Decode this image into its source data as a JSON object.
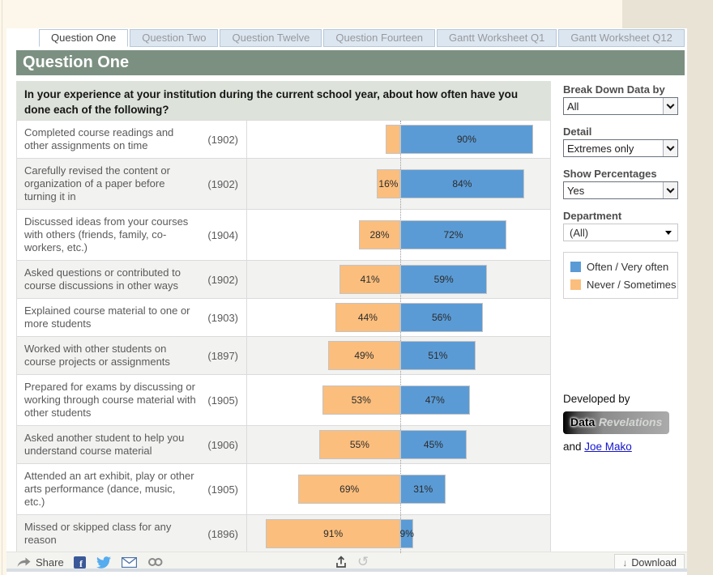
{
  "tabs": [
    {
      "label": "Question One",
      "active": true
    },
    {
      "label": "Question Two",
      "active": false
    },
    {
      "label": "Question Twelve",
      "active": false
    },
    {
      "label": "Question Fourteen",
      "active": false
    },
    {
      "label": "Gantt Worksheet Q1",
      "active": false
    },
    {
      "label": "Gantt Worksheet Q12",
      "active": false
    }
  ],
  "header": {
    "title": "Question One"
  },
  "question": "In your experience at your institution during the current school year, about how often have you done each of the following?",
  "chart_data": {
    "type": "bar",
    "orientation": "horizontal-diverging",
    "series": [
      {
        "name": "Never / Sometimes",
        "color": "#FBBE7D"
      },
      {
        "name": "Often / Very often",
        "color": "#5B9BD5"
      }
    ],
    "rows": [
      {
        "label": "Completed course readings and other assignments on time",
        "n": "(1902)",
        "never_pct": 10,
        "often_pct": 90,
        "never_label": "",
        "often_label": "90%"
      },
      {
        "label": "Carefully revised the content or organization of a paper before turning it in",
        "n": "(1902)",
        "never_pct": 16,
        "often_pct": 84,
        "never_label": "16%",
        "often_label": "84%"
      },
      {
        "label": "Discussed ideas from your courses with others (friends, family, co-workers, etc.)",
        "n": "(1904)",
        "never_pct": 28,
        "often_pct": 72,
        "never_label": "28%",
        "often_label": "72%"
      },
      {
        "label": "Asked questions or contributed to course discussions in other ways",
        "n": "(1902)",
        "never_pct": 41,
        "often_pct": 59,
        "never_label": "41%",
        "often_label": "59%"
      },
      {
        "label": "Explained course material to one or more students",
        "n": "(1903)",
        "never_pct": 44,
        "often_pct": 56,
        "never_label": "44%",
        "often_label": "56%"
      },
      {
        "label": "Worked with other students on course projects or assignments",
        "n": "(1897)",
        "never_pct": 49,
        "often_pct": 51,
        "never_label": "49%",
        "often_label": "51%"
      },
      {
        "label": "Prepared for exams by discussing or working through course material with other students",
        "n": "(1905)",
        "never_pct": 53,
        "often_pct": 47,
        "never_label": "53%",
        "often_label": "47%"
      },
      {
        "label": "Asked another student to help you understand course material",
        "n": "(1906)",
        "never_pct": 55,
        "often_pct": 45,
        "never_label": "55%",
        "often_label": "45%"
      },
      {
        "label": "Attended an art exhibit, play or other arts performance (dance, music, etc.)",
        "n": "(1905)",
        "never_pct": 69,
        "often_pct": 31,
        "never_label": "69%",
        "often_label": "31%"
      },
      {
        "label": "Missed or skipped class for any reason",
        "n": "(1896)",
        "never_pct": 91,
        "often_pct": 9,
        "never_label": "91%",
        "often_label": "9%"
      }
    ]
  },
  "filters": [
    {
      "label": "Break Down Data by",
      "value": "All",
      "style": "native"
    },
    {
      "label": "Detail",
      "value": "Extremes only",
      "style": "native"
    },
    {
      "label": "Show Percentages",
      "value": "Yes",
      "style": "native"
    },
    {
      "label": "Department",
      "value": "(All)",
      "style": "tableau"
    }
  ],
  "legend": {
    "items": [
      {
        "label": "Often / Very often",
        "color": "#5B9BD5"
      },
      {
        "label": "Never / Sometimes",
        "color": "#FBBE7D"
      }
    ]
  },
  "credits": {
    "developed_by": "Developed by",
    "logo_word1": "Data",
    "logo_word2": "Revelations",
    "and_text": "and ",
    "link_text": "Joe Mako"
  },
  "toolbar": {
    "share_label": "Share",
    "download_label": "Download",
    "download_arrow": "↓",
    "refresh_glyph": "↺"
  },
  "colors": {
    "blue": "#5B9BD5",
    "orange": "#FBBE7D",
    "header_green": "#7C9082",
    "question_bg": "#DDE3DA"
  }
}
